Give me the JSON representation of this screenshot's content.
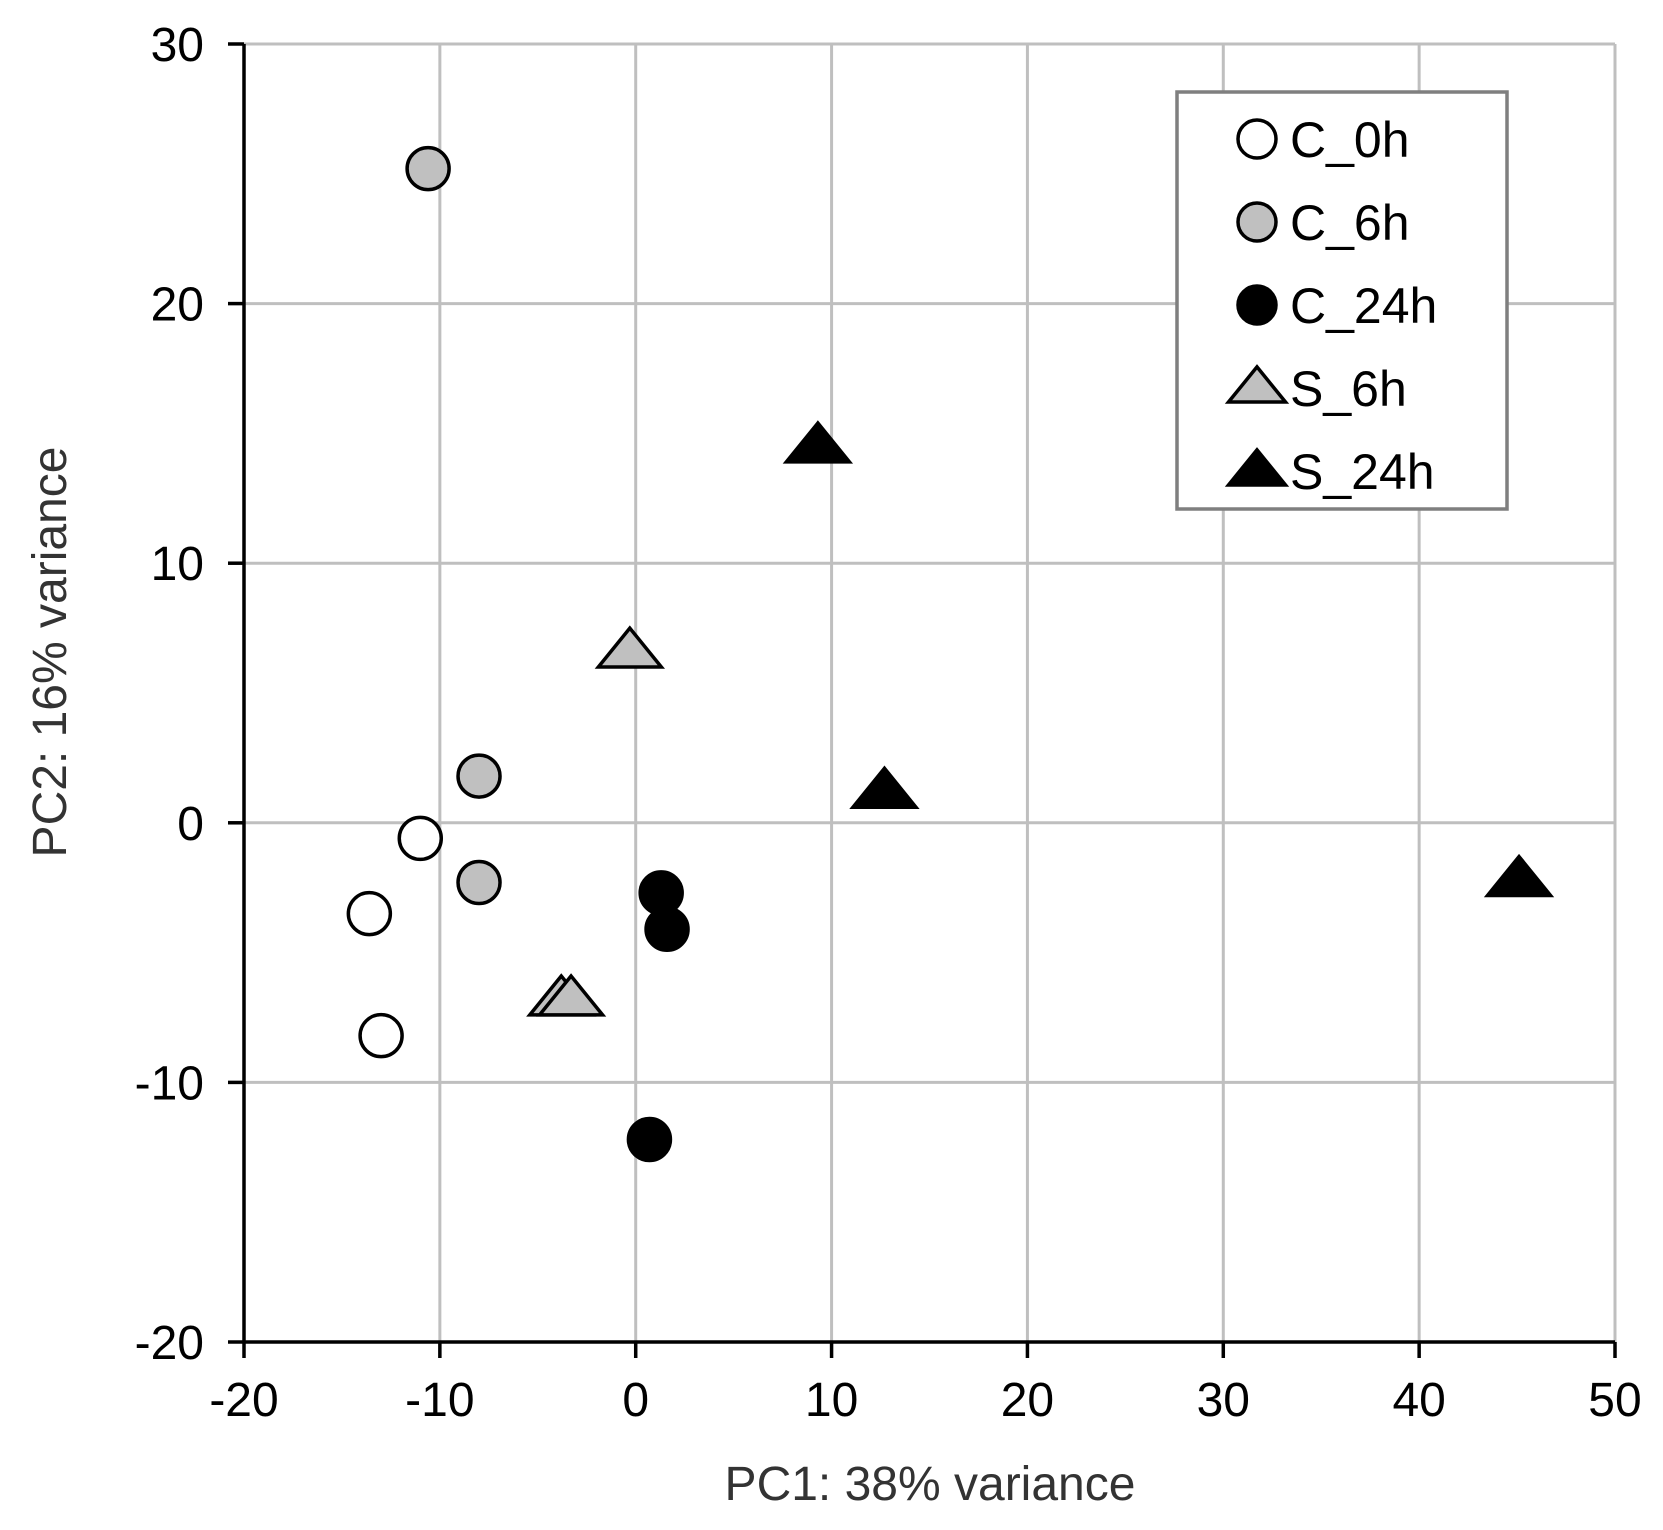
{
  "chart_data": {
    "type": "scatter",
    "xlabel": "PC1: 38% variance",
    "ylabel": "PC2: 16% variance",
    "xlim": [
      -20,
      50
    ],
    "ylim": [
      -20,
      30
    ],
    "xticks": [
      -20,
      -10,
      0,
      10,
      20,
      30,
      40,
      50
    ],
    "yticks": [
      -20,
      -10,
      0,
      10,
      20,
      30
    ],
    "grid": true,
    "legend_position": "top-right",
    "series": [
      {
        "name": "C_0h",
        "marker": "circle",
        "fill": "#ffffff",
        "points": [
          [
            -11,
            -0.6
          ],
          [
            -13.6,
            -3.5
          ],
          [
            -13,
            -8.2
          ]
        ]
      },
      {
        "name": "C_6h",
        "marker": "circle",
        "fill": "#c0c0c0",
        "points": [
          [
            -10.6,
            25.2
          ],
          [
            -8,
            1.8
          ],
          [
            -8,
            -2.3
          ]
        ]
      },
      {
        "name": "C_24h",
        "marker": "circle",
        "fill": "#000000",
        "points": [
          [
            1.3,
            -2.7
          ],
          [
            1.6,
            -4.1
          ],
          [
            0.7,
            -12.2
          ]
        ]
      },
      {
        "name": "S_6h",
        "marker": "triangle",
        "fill": "#c0c0c0",
        "points": [
          [
            -0.3,
            6.6
          ],
          [
            -3.8,
            -6.8
          ],
          [
            -3.3,
            -6.8
          ]
        ]
      },
      {
        "name": "S_24h",
        "marker": "triangle",
        "fill": "#000000",
        "points": [
          [
            9.3,
            14.5
          ],
          [
            12.7,
            1.2
          ],
          [
            45.1,
            -2.2
          ]
        ]
      }
    ]
  }
}
